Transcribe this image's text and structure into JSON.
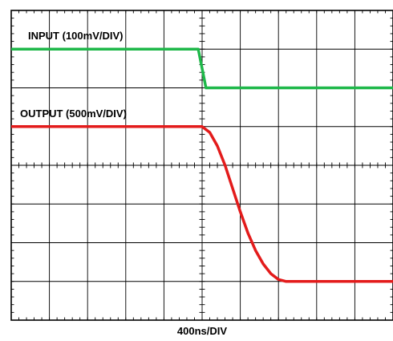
{
  "chart_data": {
    "type": "line",
    "xlabel": "400ns/DIV",
    "grid": true,
    "x_divisions": 10,
    "y_divisions": 8,
    "xlim": [
      0,
      10
    ],
    "ylim": [
      0,
      8
    ],
    "series": [
      {
        "name": "INPUT (100mV/DIV)",
        "color": "#1fb84a",
        "x": [
          0,
          4.9,
          5.0,
          5.1,
          10
        ],
        "y": [
          7.0,
          7.0,
          6.5,
          6.0,
          6.0
        ]
      },
      {
        "name": "OUTPUT (500mV/DIV)",
        "color": "#e31b1b",
        "x": [
          0,
          5.0,
          5.2,
          5.4,
          5.6,
          5.8,
          6.0,
          6.2,
          6.4,
          6.6,
          6.8,
          7.0,
          7.2,
          7.4,
          7.6,
          7.8,
          8.0,
          10
        ],
        "y": [
          5.0,
          5.0,
          4.85,
          4.5,
          4.0,
          3.4,
          2.8,
          2.25,
          1.8,
          1.45,
          1.2,
          1.05,
          1.0,
          1.0,
          1.0,
          1.0,
          1.0,
          1.0
        ]
      }
    ]
  }
}
